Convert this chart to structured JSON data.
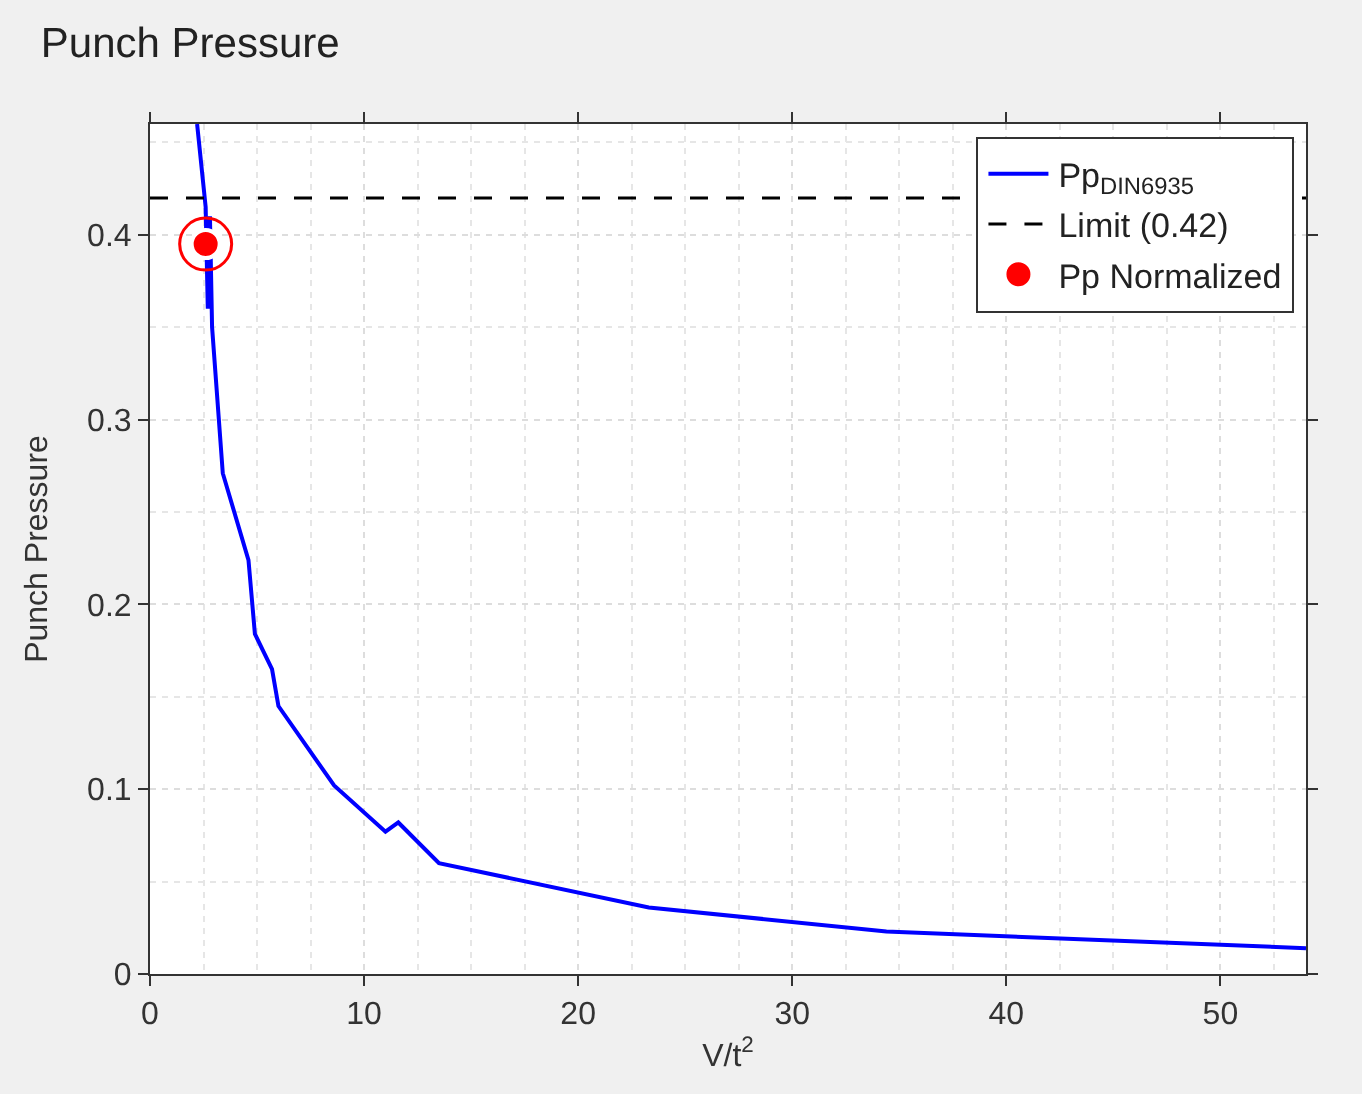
{
  "chart_data": {
    "type": "line",
    "title": "Punch Pressure",
    "xlabel": "V/t$^{2}$",
    "ylabel": "Punch Pressure",
    "xlim": [
      0,
      54
    ],
    "xticks": [
      0,
      10,
      20,
      30,
      40,
      50
    ],
    "ylim": [
      0,
      0.46
    ],
    "yticks": [
      0,
      0.1,
      0.2,
      0.3,
      0.4
    ],
    "grid": true,
    "legend": "top right",
    "series": [
      {
        "name": "Pp$_{DIN6935}$",
        "color": "#0000ff",
        "line_style": "solid",
        "marker": "none",
        "x": [
          2.2,
          2.6,
          2.7,
          2.8,
          2.9,
          3.4,
          4.6,
          4.9,
          5.7,
          6.0,
          8.6,
          11.0,
          11.6,
          13.5,
          23.3,
          34.4,
          54
        ],
        "values": [
          0.46,
          0.415,
          0.36,
          0.41,
          0.35,
          0.271,
          0.224,
          0.184,
          0.165,
          0.145,
          0.102,
          0.077,
          0.082,
          0.06,
          0.036,
          0.023,
          0.014
        ]
      },
      {
        "name": "Pp Normalized",
        "type": "scatter",
        "color": "#ff0000",
        "marker": "circle",
        "x": [
          2.6
        ],
        "values": [
          0.395
        ]
      }
    ],
    "ref_lines": [
      {
        "axis": "y",
        "value": 0.42,
        "label": "Limit (0.42)",
        "color": "#000000",
        "line_style": "dashed"
      }
    ]
  }
}
